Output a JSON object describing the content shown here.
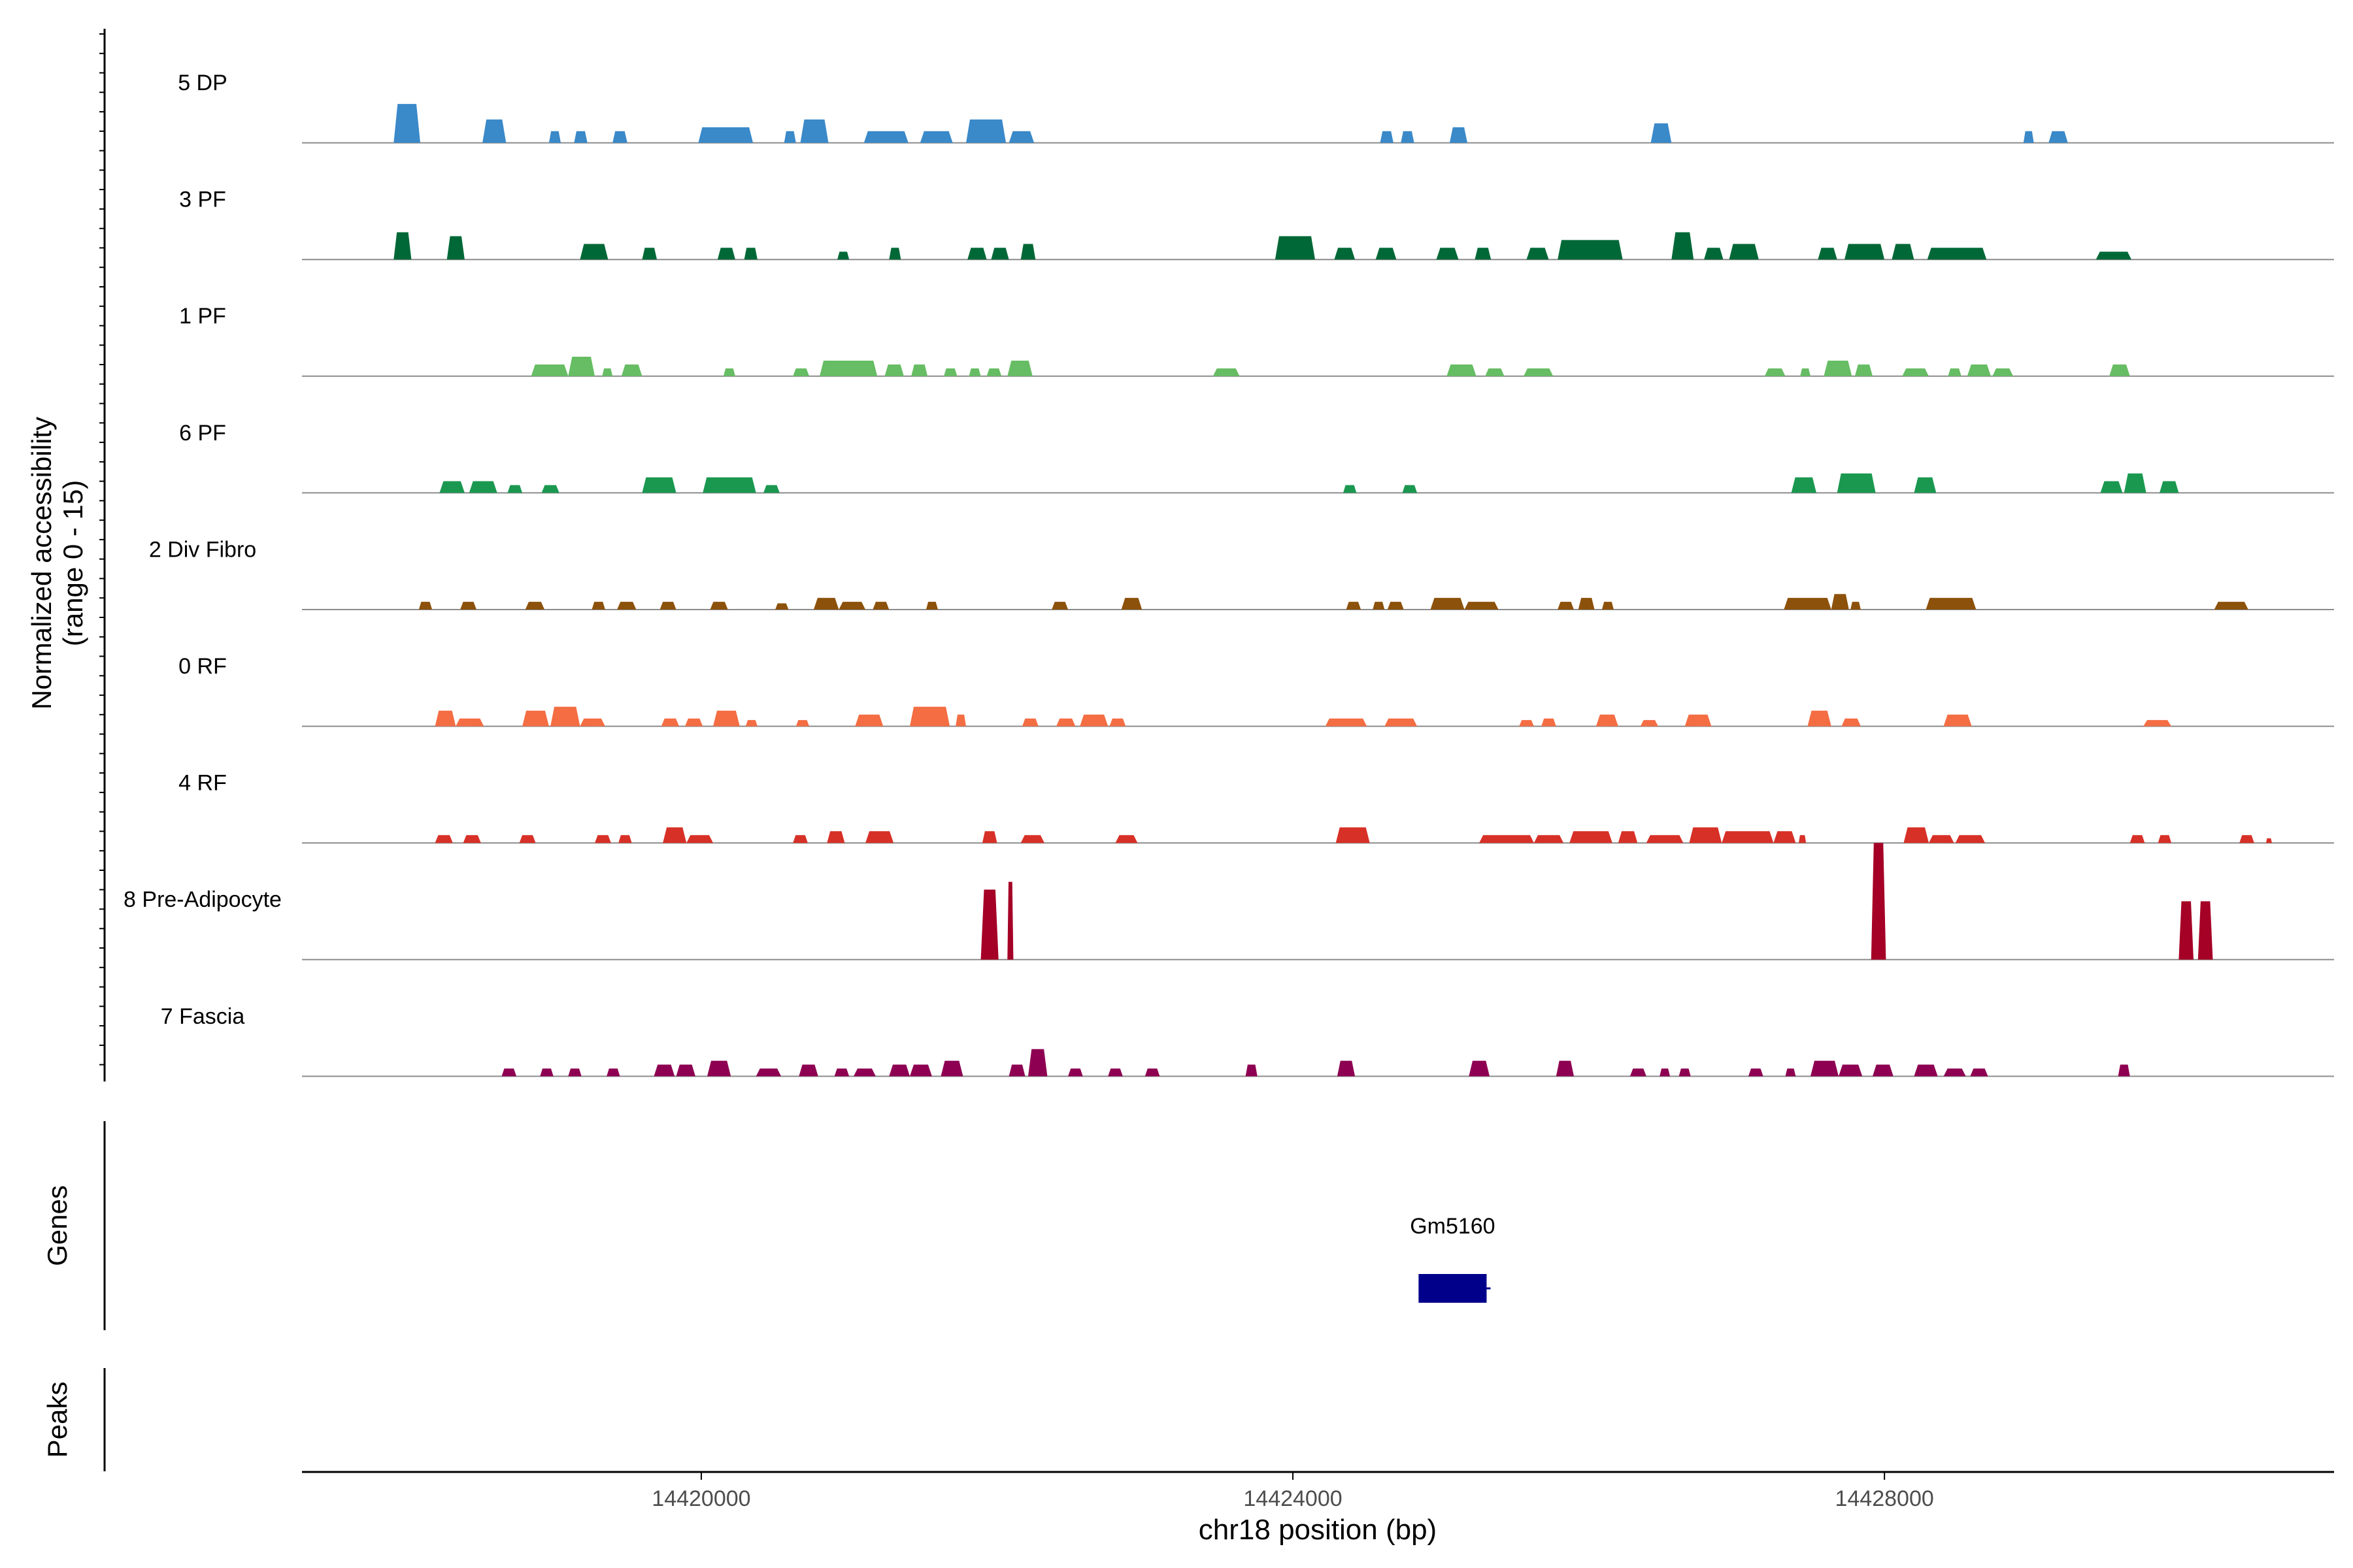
{
  "chart_data": {
    "type": "area",
    "ylabel_line1": "Normalized accessibility",
    "ylabel_line2": "(range 0 - 15)",
    "ylim": [
      0,
      15
    ],
    "xlabel": "chr18 position (bp)",
    "xlim": [
      14417300,
      14431040
    ],
    "x_ticks": [
      14420000,
      14424000,
      14428000
    ],
    "x_tick_labels": [
      "14420000",
      "14424000",
      "14428000"
    ],
    "genes_label": "Genes",
    "peaks_label": "Peaks",
    "genes": [
      {
        "name": "Gm5160",
        "start": 14424850,
        "end": 14425310,
        "color": "#00008B"
      }
    ],
    "series": [
      {
        "name": "5 DP",
        "color": "#3A89C9",
        "peaks": [
          [
            14417920,
            14418100,
            5.0
          ],
          [
            14418520,
            14418680,
            3.0
          ],
          [
            14418970,
            14419050,
            1.5
          ],
          [
            14419140,
            14419230,
            1.5
          ],
          [
            14419400,
            14419500,
            1.5
          ],
          [
            14419980,
            14420350,
            2.0
          ],
          [
            14420560,
            14420640,
            1.5
          ],
          [
            14420670,
            14420860,
            3.0
          ],
          [
            14421100,
            14421400,
            1.5
          ],
          [
            14421480,
            14421700,
            1.5
          ],
          [
            14421790,
            14422060,
            3.0
          ],
          [
            14422080,
            14422250,
            1.5
          ],
          [
            14424590,
            14424680,
            1.5
          ],
          [
            14424730,
            14424820,
            1.5
          ],
          [
            14425060,
            14425180,
            2.0
          ],
          [
            14426420,
            14426560,
            2.5
          ],
          [
            14428940,
            14429010,
            1.5
          ],
          [
            14429110,
            14429240,
            1.5
          ]
        ]
      },
      {
        "name": "3 PF",
        "color": "#006837",
        "peaks": [
          [
            14417920,
            14418040,
            3.5
          ],
          [
            14418280,
            14418400,
            3.0
          ],
          [
            14419180,
            14419370,
            2.0
          ],
          [
            14419600,
            14419700,
            1.5
          ],
          [
            14420110,
            14420230,
            1.5
          ],
          [
            14420290,
            14420380,
            1.5
          ],
          [
            14420920,
            14421000,
            1.0
          ],
          [
            14421270,
            14421350,
            1.5
          ],
          [
            14421800,
            14421930,
            1.5
          ],
          [
            14421960,
            14422080,
            1.5
          ],
          [
            14422160,
            14422260,
            2.0
          ],
          [
            14423880,
            14424150,
            3.0
          ],
          [
            14424280,
            14424420,
            1.5
          ],
          [
            14424560,
            14424700,
            1.5
          ],
          [
            14424970,
            14425120,
            1.5
          ],
          [
            14425230,
            14425340,
            1.5
          ],
          [
            14425580,
            14425730,
            1.5
          ],
          [
            14425790,
            14426230,
            2.5
          ],
          [
            14426560,
            14426710,
            3.5
          ],
          [
            14426780,
            14426910,
            1.5
          ],
          [
            14426950,
            14427150,
            2.0
          ],
          [
            14427550,
            14427680,
            1.5
          ],
          [
            14427730,
            14428000,
            2.0
          ],
          [
            14428050,
            14428200,
            2.0
          ],
          [
            14428290,
            14428690,
            1.5
          ],
          [
            14429430,
            14429670,
            1.0
          ]
        ]
      },
      {
        "name": "1 PF",
        "color": "#66BD63",
        "peaks": [
          [
            14418850,
            14419100,
            1.5
          ],
          [
            14419100,
            14419280,
            2.5
          ],
          [
            14419330,
            14419400,
            1.0
          ],
          [
            14419460,
            14419600,
            1.5
          ],
          [
            14420150,
            14420230,
            1.0
          ],
          [
            14420620,
            14420730,
            1.0
          ],
          [
            14420800,
            14421190,
            2.0
          ],
          [
            14421240,
            14421370,
            1.5
          ],
          [
            14421420,
            14421530,
            1.5
          ],
          [
            14421640,
            14421730,
            1.0
          ],
          [
            14421810,
            14421890,
            1.0
          ],
          [
            14421930,
            14422030,
            1.0
          ],
          [
            14422070,
            14422240,
            2.0
          ],
          [
            14423460,
            14423640,
            1.0
          ],
          [
            14425040,
            14425240,
            1.5
          ],
          [
            14425300,
            14425430,
            1.0
          ],
          [
            14425560,
            14425760,
            1.0
          ],
          [
            14427190,
            14427330,
            1.0
          ],
          [
            14427430,
            14427500,
            1.0
          ],
          [
            14427590,
            14427780,
            2.0
          ],
          [
            14427800,
            14427920,
            1.5
          ],
          [
            14428120,
            14428300,
            1.0
          ],
          [
            14428430,
            14428520,
            1.0
          ],
          [
            14428560,
            14428720,
            1.5
          ],
          [
            14428730,
            14428870,
            1.0
          ],
          [
            14429520,
            14429660,
            1.5
          ]
        ]
      },
      {
        "name": "6 PF",
        "color": "#1A9850",
        "peaks": [
          [
            14418230,
            14418400,
            1.5
          ],
          [
            14418430,
            14418620,
            1.5
          ],
          [
            14418690,
            14418790,
            1.0
          ],
          [
            14418920,
            14419040,
            1.0
          ],
          [
            14419600,
            14419830,
            2.0
          ],
          [
            14420010,
            14420370,
            2.0
          ],
          [
            14420420,
            14420530,
            1.0
          ],
          [
            14424340,
            14424430,
            1.0
          ],
          [
            14424740,
            14424840,
            1.0
          ],
          [
            14427370,
            14427540,
            2.0
          ],
          [
            14427680,
            14427940,
            2.5
          ],
          [
            14428200,
            14428350,
            2.0
          ],
          [
            14429460,
            14429610,
            1.5
          ],
          [
            14429620,
            14429770,
            2.5
          ],
          [
            14429860,
            14429990,
            1.5
          ]
        ]
      },
      {
        "name": "2 Div Fibro",
        "color": "#8C510A",
        "peaks": [
          [
            14418090,
            14418180,
            1.0
          ],
          [
            14418370,
            14418480,
            1.0
          ],
          [
            14418810,
            14418940,
            1.0
          ],
          [
            14419260,
            14419350,
            1.0
          ],
          [
            14419430,
            14419560,
            1.0
          ],
          [
            14419720,
            14419830,
            1.0
          ],
          [
            14420060,
            14420180,
            1.0
          ],
          [
            14420500,
            14420590,
            0.8
          ],
          [
            14420760,
            14420930,
            1.5
          ],
          [
            14420930,
            14421110,
            1.0
          ],
          [
            14421160,
            14421270,
            1.0
          ],
          [
            14421520,
            14421600,
            1.0
          ],
          [
            14422370,
            14422480,
            1.0
          ],
          [
            14422840,
            14422980,
            1.5
          ],
          [
            14424360,
            14424460,
            1.0
          ],
          [
            14424540,
            14424620,
            1.0
          ],
          [
            14424640,
            14424750,
            1.0
          ],
          [
            14424930,
            14425160,
            1.5
          ],
          [
            14425160,
            14425390,
            1.0
          ],
          [
            14425790,
            14425900,
            1.0
          ],
          [
            14425930,
            14426040,
            1.5
          ],
          [
            14426090,
            14426170,
            1.0
          ],
          [
            14427320,
            14427640,
            1.5
          ],
          [
            14427640,
            14427760,
            2.0
          ],
          [
            14427770,
            14427840,
            1.0
          ],
          [
            14428280,
            14428620,
            1.5
          ],
          [
            14430230,
            14430460,
            1.0
          ]
        ]
      },
      {
        "name": "0 RF",
        "color": "#F46D43",
        "peaks": [
          [
            14418200,
            14418340,
            2.0
          ],
          [
            14418340,
            14418530,
            1.0
          ],
          [
            14418790,
            14418970,
            2.0
          ],
          [
            14418980,
            14419180,
            2.5
          ],
          [
            14419180,
            14419350,
            1.0
          ],
          [
            14419730,
            14419850,
            1.0
          ],
          [
            14419890,
            14420010,
            1.0
          ],
          [
            14420080,
            14420260,
            2.0
          ],
          [
            14420300,
            14420380,
            0.8
          ],
          [
            14420640,
            14420730,
            0.8
          ],
          [
            14421040,
            14421230,
            1.5
          ],
          [
            14421410,
            14421680,
            2.5
          ],
          [
            14421720,
            14421790,
            1.5
          ],
          [
            14422170,
            14422280,
            1.0
          ],
          [
            14422400,
            14422530,
            1.0
          ],
          [
            14422560,
            14422750,
            1.5
          ],
          [
            14422760,
            14422870,
            1.0
          ],
          [
            14424220,
            14424500,
            1.0
          ],
          [
            14424620,
            14424840,
            1.0
          ],
          [
            14425530,
            14425630,
            0.8
          ],
          [
            14425680,
            14425780,
            1.0
          ],
          [
            14426050,
            14426200,
            1.5
          ],
          [
            14426350,
            14426470,
            0.8
          ],
          [
            14426650,
            14426830,
            1.5
          ],
          [
            14427480,
            14427640,
            2.0
          ],
          [
            14427710,
            14427840,
            1.0
          ],
          [
            14428400,
            14428590,
            1.5
          ],
          [
            14429750,
            14429940,
            0.8
          ]
        ]
      },
      {
        "name": "4 RF",
        "color": "#D73027",
        "peaks": [
          [
            14418200,
            14418320,
            1.0
          ],
          [
            14418390,
            14418510,
            1.0
          ],
          [
            14418770,
            14418880,
            1.0
          ],
          [
            14419280,
            14419390,
            1.0
          ],
          [
            14419440,
            14419530,
            1.0
          ],
          [
            14419740,
            14419900,
            2.0
          ],
          [
            14419900,
            14420080,
            1.0
          ],
          [
            14420620,
            14420720,
            1.0
          ],
          [
            14420850,
            14420970,
            1.5
          ],
          [
            14421110,
            14421300,
            1.5
          ],
          [
            14421900,
            14422000,
            1.5
          ],
          [
            14422160,
            14422320,
            1.0
          ],
          [
            14422800,
            14422950,
            1.0
          ],
          [
            14424290,
            14424520,
            2.0
          ],
          [
            14425260,
            14425630,
            1.0
          ],
          [
            14425630,
            14425830,
            1.0
          ],
          [
            14425870,
            14426160,
            1.5
          ],
          [
            14426200,
            14426330,
            1.5
          ],
          [
            14426390,
            14426640,
            1.0
          ],
          [
            14426680,
            14426900,
            2.0
          ],
          [
            14426900,
            14427250,
            1.5
          ],
          [
            14427250,
            14427400,
            1.5
          ],
          [
            14427420,
            14427470,
            1.0
          ],
          [
            14428130,
            14428300,
            2.0
          ],
          [
            14428300,
            14428470,
            1.0
          ],
          [
            14428480,
            14428680,
            1.0
          ],
          [
            14429660,
            14429760,
            1.0
          ],
          [
            14429850,
            14429940,
            1.0
          ],
          [
            14430400,
            14430500,
            1.0
          ],
          [
            14430580,
            14430620,
            0.6
          ]
        ]
      },
      {
        "name": "8 Pre-Adipocyte",
        "color": "#A50026",
        "peaks": [
          [
            14421890,
            14422010,
            9.0
          ],
          [
            14422080,
            14422090,
            6.0
          ],
          [
            14422070,
            14422110,
            10.0
          ],
          [
            14427910,
            14428010,
            15.0
          ],
          [
            14429990,
            14430090,
            7.5
          ],
          [
            14430120,
            14430220,
            7.5
          ]
        ]
      },
      {
        "name": "7 Fascia",
        "color": "#8E0152",
        "peaks": [
          [
            14418650,
            14418750,
            1.0
          ],
          [
            14418910,
            14419000,
            1.0
          ],
          [
            14419100,
            14419190,
            1.0
          ],
          [
            14419360,
            14419450,
            1.0
          ],
          [
            14419680,
            14419820,
            1.5
          ],
          [
            14419830,
            14419960,
            1.5
          ],
          [
            14420040,
            14420200,
            2.0
          ],
          [
            14420370,
            14420540,
            1.0
          ],
          [
            14420660,
            14420790,
            1.5
          ],
          [
            14420900,
            14421000,
            1.0
          ],
          [
            14421030,
            14421180,
            1.0
          ],
          [
            14421270,
            14421410,
            1.5
          ],
          [
            14421410,
            14421560,
            1.5
          ],
          [
            14421620,
            14421770,
            2.0
          ],
          [
            14422080,
            14422190,
            1.5
          ],
          [
            14422210,
            14422340,
            3.5
          ],
          [
            14422480,
            14422580,
            1.0
          ],
          [
            14422750,
            14422850,
            1.0
          ],
          [
            14423000,
            14423100,
            1.0
          ],
          [
            14423680,
            14423760,
            1.5
          ],
          [
            14424300,
            14424420,
            2.0
          ],
          [
            14425190,
            14425330,
            2.0
          ],
          [
            14425780,
            14425900,
            2.0
          ],
          [
            14426280,
            14426390,
            1.0
          ],
          [
            14426480,
            14426550,
            1.0
          ],
          [
            14426610,
            14426690,
            1.0
          ],
          [
            14427080,
            14427180,
            1.0
          ],
          [
            14427330,
            14427400,
            1.0
          ],
          [
            14427500,
            14427690,
            2.0
          ],
          [
            14427690,
            14427850,
            1.5
          ],
          [
            14427920,
            14428060,
            1.5
          ],
          [
            14428200,
            14428360,
            1.5
          ],
          [
            14428400,
            14428550,
            1.0
          ],
          [
            14428580,
            14428700,
            1.0
          ],
          [
            14429580,
            14429660,
            1.5
          ]
        ]
      }
    ]
  }
}
